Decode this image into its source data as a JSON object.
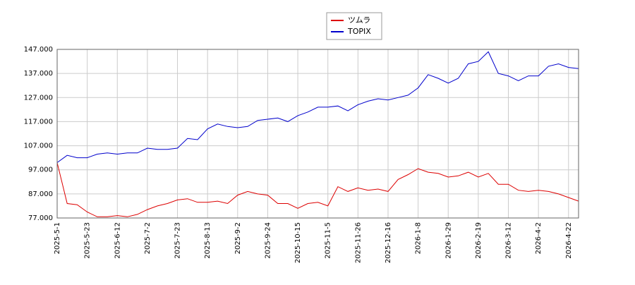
{
  "chart_data": {
    "type": "line",
    "x": [
      "2025-5-1",
      "2025-5-8",
      "2025-5-15",
      "2025-5-23",
      "2025-5-30",
      "2025-6-5",
      "2025-6-12",
      "2025-6-19",
      "2025-6-26",
      "2025-7-2",
      "2025-7-9",
      "2025-7-16",
      "2025-7-23",
      "2025-7-30",
      "2025-8-6",
      "2025-8-13",
      "2025-8-20",
      "2025-8-27",
      "2025-9-2",
      "2025-9-9",
      "2025-9-17",
      "2025-9-24",
      "2025-10-1",
      "2025-10-8",
      "2025-10-15",
      "2025-10-22",
      "2025-10-29",
      "2025-11-5",
      "2025-11-12",
      "2025-11-19",
      "2025-11-26",
      "2025-12-3",
      "2025-12-10",
      "2025-12-16",
      "2025-12-23",
      "2025-12-30",
      "2026-1-8",
      "2026-1-15",
      "2026-1-22",
      "2026-1-29",
      "2026-2-5",
      "2026-2-12",
      "2026-2-19",
      "2026-2-26",
      "2026-3-5",
      "2026-3-12",
      "2026-3-19",
      "2026-3-26",
      "2026-4-2",
      "2026-4-9",
      "2026-4-15",
      "2026-4-22",
      "2026-4-30"
    ],
    "series": [
      {
        "name": "ツムラ",
        "color": "#dd0000",
        "values": [
          100,
          83,
          82.5,
          79.5,
          77.5,
          77.5,
          78,
          77.5,
          78.5,
          80.5,
          82,
          83,
          84.5,
          85,
          83.5,
          83.5,
          84,
          83,
          86.5,
          88,
          87,
          86.5,
          83,
          83,
          81,
          83,
          83.5,
          82,
          90,
          88,
          89.5,
          88.5,
          89,
          88,
          93,
          95,
          97.5,
          96,
          95.5,
          94,
          94.5,
          96,
          94,
          95.5,
          91,
          91,
          88.5,
          88,
          88.5,
          88,
          87,
          85.5,
          84
        ]
      },
      {
        "name": "TOPIX",
        "color": "#0000cc",
        "values": [
          100,
          103,
          102,
          102,
          103.5,
          104,
          103.5,
          104,
          104,
          106,
          105.5,
          105.5,
          106,
          110,
          109.5,
          114,
          116,
          115,
          114.5,
          115,
          117.5,
          118,
          118.5,
          117,
          119.5,
          121,
          123,
          123,
          123.5,
          121.5,
          124,
          125.5,
          126.5,
          126,
          127,
          128,
          131,
          136.5,
          135,
          133,
          135,
          141,
          142,
          146,
          137,
          136,
          134,
          136,
          136,
          140,
          141,
          139.5,
          139
        ]
      }
    ],
    "ylim": [
      77,
      147
    ],
    "yticks": [
      {
        "value": 77,
        "label": "77.000"
      },
      {
        "value": 87,
        "label": "87.000"
      },
      {
        "value": 97,
        "label": "97.000"
      },
      {
        "value": 107,
        "label": "107.000"
      },
      {
        "value": 117,
        "label": "117.000"
      },
      {
        "value": 127,
        "label": "127.000"
      },
      {
        "value": 137,
        "label": "137.000"
      },
      {
        "value": 147,
        "label": "147.000"
      }
    ],
    "xticks": [
      "2025-5-1",
      "2025-5-23",
      "2025-6-12",
      "2025-7-2",
      "2025-7-23",
      "2025-8-13",
      "2025-9-2",
      "2025-9-24",
      "2025-10-15",
      "2025-11-5",
      "2025-11-26",
      "2025-12-16",
      "2026-1-8",
      "2026-1-29",
      "2026-2-19",
      "2026-3-12",
      "2026-4-2",
      "2026-4-22"
    ],
    "grid": true,
    "legend": "top"
  }
}
